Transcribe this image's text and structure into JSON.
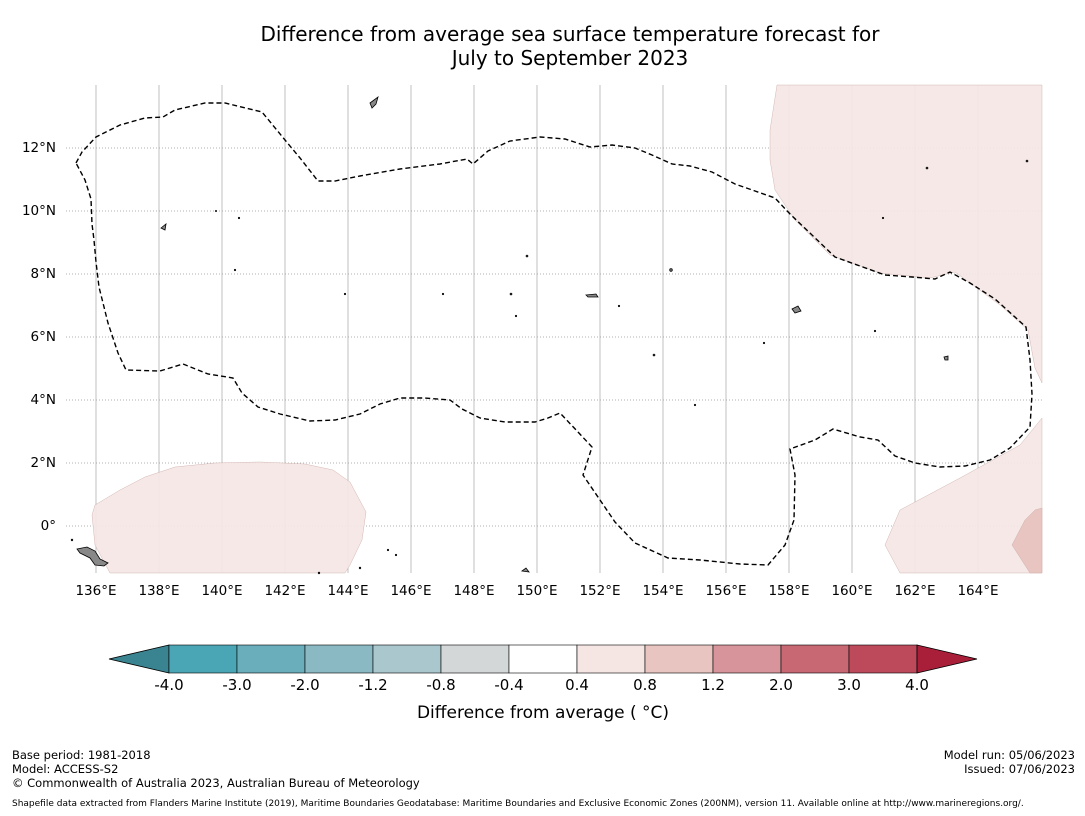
{
  "title": {
    "line1": "Difference from average sea surface temperature forecast for",
    "line2": "July to September 2023"
  },
  "map": {
    "lon_labels": [
      "136°E",
      "138°E",
      "140°E",
      "142°E",
      "144°E",
      "146°E",
      "148°E",
      "150°E",
      "152°E",
      "154°E",
      "156°E",
      "158°E",
      "160°E",
      "162°E",
      "164°E"
    ],
    "lat_labels": [
      "12°N",
      "10°N",
      "8°N",
      "6°N",
      "4°N",
      "2°N",
      "0°"
    ],
    "eez_boundary": "dashed",
    "anomaly_fill_light": "#f5e6e4",
    "anomaly_fill_medium": "#e8c5c0"
  },
  "colorbar": {
    "ticks": [
      "-4.0",
      "-3.0",
      "-2.0",
      "-1.2",
      "-0.8",
      "-0.4",
      "0.4",
      "0.8",
      "1.2",
      "2.0",
      "3.0",
      "4.0"
    ],
    "colors": [
      "#4aa5b4",
      "#6aaebb",
      "#8ab9c3",
      "#a9c7cd",
      "#d4d7d8",
      "#ffffff",
      "#f5e6e4",
      "#e8c5c0",
      "#d7949a",
      "#c86872",
      "#bd4a5b"
    ],
    "under_color": "#3a8390",
    "over_color": "#a91f3a",
    "label": "Difference from average ( °C)"
  },
  "footer": {
    "base_period": "Base period: 1981-2018",
    "model": "Model: ACCESS-S2",
    "copyright": "© Commonwealth of Australia 2023, Australian Bureau of Meteorology",
    "model_run": "Model run: 05/06/2023",
    "issued": "Issued: 07/06/2023",
    "shapefile": "Shapefile data extracted from Flanders Marine Institute (2019), Maritime Boundaries Geodatabase: Maritime Boundaries and Exclusive Economic Zones (200NM), version 11. Available online at http://www.marineregions.org/."
  }
}
